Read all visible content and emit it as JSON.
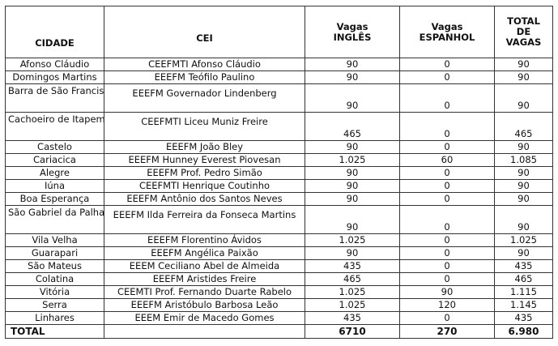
{
  "table": {
    "headers": {
      "cidade": "CIDADE",
      "cei": "CEI",
      "ingles_line1": "Vagas",
      "ingles_line2": "INGLÊS",
      "espanhol_line1": "Vagas",
      "espanhol_line2": "ESPANHOL",
      "total_line1": "TOTAL",
      "total_line2": "DE",
      "total_line3": "VAGAS"
    },
    "rows": [
      {
        "cidade": "Afonso Cláudio",
        "cei": "CEEFMTI Afonso Cláudio",
        "ingles": "90",
        "espanhol": "0",
        "total": "90"
      },
      {
        "cidade": "Domingos Martins",
        "cei": "EEEFM Teófilo Paulino",
        "ingles": "90",
        "espanhol": "0",
        "total": "90"
      },
      {
        "cidade": "Barra de São Francisco",
        "cei": "EEEFM Governador Lindenberg",
        "ingles": "90",
        "espanhol": "0",
        "total": "90"
      },
      {
        "cidade": "Cachoeiro de Itapemirim",
        "cei": "CEEFMTI Liceu Muniz Freire",
        "ingles": "465",
        "espanhol": "0",
        "total": "465"
      },
      {
        "cidade": "Castelo",
        "cei": "EEEFM João Bley",
        "ingles": "90",
        "espanhol": "0",
        "total": "90"
      },
      {
        "cidade": "Cariacica",
        "cei": "EEEFM Hunney Everest Piovesan",
        "ingles": "1.025",
        "espanhol": "60",
        "total": "1.085"
      },
      {
        "cidade": "Alegre",
        "cei": "EEEFM Prof. Pedro Simão",
        "ingles": "90",
        "espanhol": "0",
        "total": "90"
      },
      {
        "cidade": "Iúna",
        "cei": "CEEFMTI Henrique Coutinho",
        "ingles": "90",
        "espanhol": "0",
        "total": "90"
      },
      {
        "cidade": "Boa Esperança",
        "cei": "EEEFM Antônio dos Santos Neves",
        "ingles": "90",
        "espanhol": "0",
        "total": "90"
      },
      {
        "cidade": "São Gabriel da Palha",
        "cei": "EEEFM Ilda Ferreira da Fonseca Martins",
        "ingles": "90",
        "espanhol": "0",
        "total": "90"
      },
      {
        "cidade": "Vila Velha",
        "cei": "EEEFM Florentino Ávidos",
        "ingles": "1.025",
        "espanhol": "0",
        "total": "1.025"
      },
      {
        "cidade": "Guarapari",
        "cei": "EEEFM Angélica Paixão",
        "ingles": "90",
        "espanhol": "0",
        "total": "90"
      },
      {
        "cidade": "São Mateus",
        "cei": "EEEM Ceciliano Abel de Almeida",
        "ingles": "435",
        "espanhol": "0",
        "total": "435"
      },
      {
        "cidade": "Colatina",
        "cei": "EEEFM Aristides Freire",
        "ingles": "465",
        "espanhol": "0",
        "total": "465"
      },
      {
        "cidade": "Vitória",
        "cei": "CEEMTI Prof. Fernando Duarte Rabelo",
        "ingles": "1.025",
        "espanhol": "90",
        "total": "1.115"
      },
      {
        "cidade": "Serra",
        "cei": "EEEFM Aristóbulo Barbosa Leão",
        "ingles": "1.025",
        "espanhol": "120",
        "total": "1.145"
      },
      {
        "cidade": "Linhares",
        "cei": "EEEM Emir de Macedo Gomes",
        "ingles": "435",
        "espanhol": "0",
        "total": "435"
      }
    ],
    "totals": {
      "label": "TOTAL",
      "ingles": "6710",
      "espanhol": "270",
      "total": "6.980"
    }
  }
}
